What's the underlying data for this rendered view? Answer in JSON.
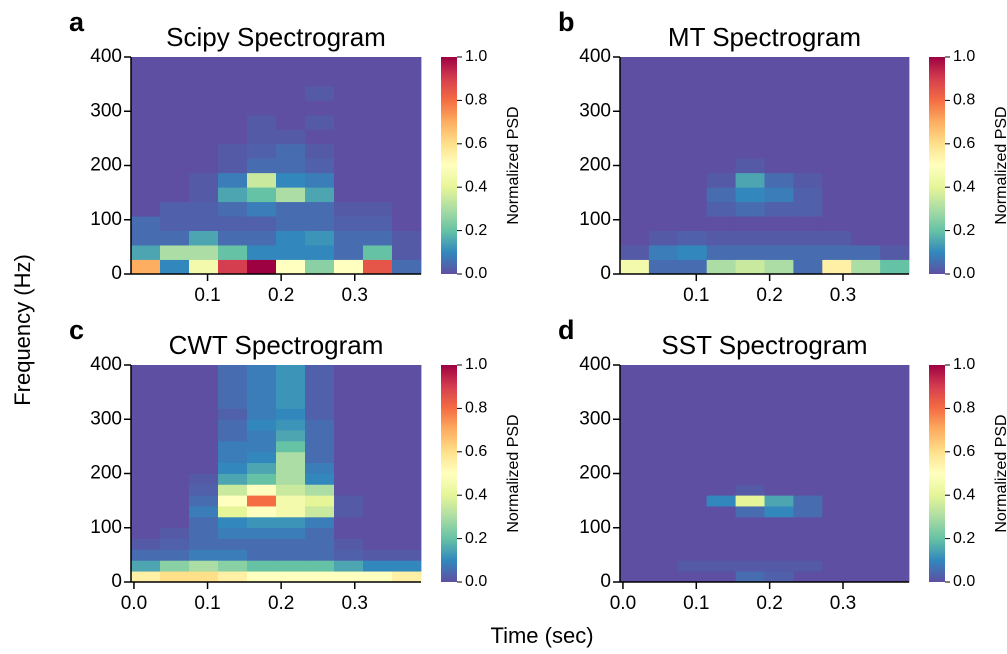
{
  "figure": {
    "xlabel": "Time (sec)",
    "ylabel": "Frequency (Hz)"
  },
  "colormap": [
    "#5e4fa2",
    "#3288bd",
    "#66c2a5",
    "#abdda4",
    "#e6f598",
    "#ffffbf",
    "#fee08b",
    "#fdae61",
    "#f46d43",
    "#d53e4f",
    "#9e0142"
  ],
  "chart_data": [
    {
      "type": "heatmap",
      "panel": "a",
      "title": "Scipy Spectrogram",
      "xbins": [
        -0.004,
        0.0354,
        0.0748,
        0.1142,
        0.1536,
        0.193,
        0.2324,
        0.2718,
        0.3112,
        0.3506,
        0.39
      ],
      "ybins": [
        0,
        26.67,
        53.33,
        80,
        106.67,
        133.33,
        160,
        186.67,
        213.33,
        240,
        266.67,
        293.33,
        320,
        346.67,
        373.33,
        400
      ],
      "values": [
        [
          0.7,
          0.1,
          0.45,
          0.9,
          1.0,
          0.5,
          0.25,
          0.5,
          0.85,
          0.05
        ],
        [
          0.15,
          0.3,
          0.3,
          0.2,
          0.1,
          0.1,
          0.1,
          0.05,
          0.2,
          0.02
        ],
        [
          0.05,
          0.05,
          0.15,
          0.05,
          0.05,
          0.1,
          0.12,
          0.05,
          0.05,
          0.02
        ],
        [
          0.05,
          0.03,
          0.03,
          0.03,
          0.03,
          0.05,
          0.05,
          0.03,
          0.03,
          0
        ],
        [
          0,
          0.03,
          0.03,
          0.05,
          0.08,
          0.05,
          0.05,
          0.02,
          0.02,
          0
        ],
        [
          0,
          0,
          0.02,
          0.15,
          0.2,
          0.3,
          0.15,
          0,
          0,
          0
        ],
        [
          0,
          0,
          0.02,
          0.08,
          0.35,
          0.1,
          0.08,
          0,
          0,
          0
        ],
        [
          0,
          0,
          0,
          0.02,
          0.05,
          0.05,
          0.03,
          0,
          0,
          0
        ],
        [
          0,
          0,
          0,
          0.02,
          0.03,
          0.05,
          0.02,
          0,
          0,
          0
        ],
        [
          0,
          0,
          0,
          0,
          0.02,
          0.02,
          0,
          0,
          0,
          0
        ],
        [
          0,
          0,
          0,
          0,
          0.02,
          0,
          0.02,
          0,
          0,
          0
        ],
        [
          0,
          0,
          0,
          0,
          0,
          0,
          0,
          0,
          0,
          0
        ],
        [
          0,
          0,
          0,
          0,
          0,
          0,
          0.02,
          0,
          0,
          0
        ],
        [
          0,
          0,
          0,
          0,
          0,
          0,
          0,
          0,
          0,
          0
        ],
        [
          0,
          0,
          0,
          0,
          0,
          0,
          0,
          0,
          0,
          0
        ]
      ],
      "xlim": [
        -0.004,
        0.39
      ],
      "ylim": [
        0,
        400
      ],
      "xticks": [
        0.1,
        0.2,
        0.3
      ],
      "yticks": [
        0,
        100,
        200,
        300,
        400
      ],
      "clim": [
        0,
        1
      ],
      "cticks": [
        {
          "value": 0,
          "label": "0.0"
        },
        0.2,
        0.4,
        0.6,
        0.8,
        {
          "value": 1,
          "label": "1.0"
        }
      ],
      "colorbar_label": "Normalized PSD"
    },
    {
      "type": "heatmap",
      "panel": "b",
      "title": "MT Spectrogram",
      "xbins": [
        -0.004,
        0.0354,
        0.0748,
        0.1142,
        0.1536,
        0.193,
        0.2324,
        0.2718,
        0.3112,
        0.3506,
        0.39
      ],
      "ybins": [
        0,
        26.67,
        53.33,
        80,
        106.67,
        133.33,
        160,
        186.67,
        213.33,
        240,
        266.67,
        293.33,
        320,
        346.67,
        373.33,
        400
      ],
      "values": [
        [
          0.45,
          0.05,
          0.05,
          0.3,
          0.35,
          0.3,
          0.05,
          0.55,
          0.3,
          0.2
        ],
        [
          0.02,
          0.08,
          0.1,
          0.05,
          0.05,
          0.05,
          0.05,
          0.05,
          0.05,
          0.02
        ],
        [
          0,
          0.02,
          0.03,
          0.02,
          0.02,
          0.02,
          0.02,
          0.02,
          0,
          0
        ],
        [
          0,
          0,
          0,
          0,
          0,
          0,
          0,
          0,
          0,
          0
        ],
        [
          0,
          0,
          0,
          0.03,
          0.05,
          0.03,
          0.03,
          0,
          0,
          0
        ],
        [
          0,
          0,
          0,
          0.05,
          0.1,
          0.08,
          0.03,
          0,
          0,
          0
        ],
        [
          0,
          0,
          0,
          0.02,
          0.15,
          0.05,
          0.02,
          0,
          0,
          0
        ],
        [
          0,
          0,
          0,
          0,
          0.02,
          0,
          0,
          0,
          0,
          0
        ],
        [
          0,
          0,
          0,
          0,
          0,
          0,
          0,
          0,
          0,
          0
        ],
        [
          0,
          0,
          0,
          0,
          0,
          0,
          0,
          0,
          0,
          0
        ],
        [
          0,
          0,
          0,
          0,
          0,
          0,
          0,
          0,
          0,
          0
        ],
        [
          0,
          0,
          0,
          0,
          0,
          0,
          0,
          0,
          0,
          0
        ],
        [
          0,
          0,
          0,
          0,
          0,
          0,
          0,
          0,
          0,
          0
        ],
        [
          0,
          0,
          0,
          0,
          0,
          0,
          0,
          0,
          0,
          0
        ],
        [
          0,
          0,
          0,
          0,
          0,
          0,
          0,
          0,
          0,
          0
        ]
      ],
      "xlim": [
        -0.004,
        0.39
      ],
      "ylim": [
        0,
        400
      ],
      "xticks": [
        0.1,
        0.2,
        0.3
      ],
      "yticks": [
        0,
        100,
        200,
        300,
        400
      ],
      "clim": [
        0,
        1
      ],
      "cticks": [
        {
          "value": 0,
          "label": "0.0"
        },
        0.2,
        0.4,
        0.6,
        0.8,
        {
          "value": 1,
          "label": "1.0"
        }
      ],
      "colorbar_label": "Normalized PSD"
    },
    {
      "type": "heatmap",
      "panel": "c",
      "title": "CWT Spectrogram",
      "xbins": [
        -0.004,
        0.0354,
        0.0748,
        0.1142,
        0.1536,
        0.193,
        0.2324,
        0.2718,
        0.3112,
        0.3506,
        0.39
      ],
      "ybins": [
        0,
        20,
        40,
        60,
        80,
        100,
        120,
        140,
        160,
        180,
        200,
        220,
        240,
        260,
        280,
        300,
        320,
        340,
        360,
        380,
        400
      ],
      "values": [
        [
          0.55,
          0.6,
          0.6,
          0.55,
          0.5,
          0.5,
          0.5,
          0.5,
          0.5,
          0.55
        ],
        [
          0.15,
          0.25,
          0.3,
          0.25,
          0.2,
          0.2,
          0.2,
          0.15,
          0.1,
          0.1
        ],
        [
          0.05,
          0.05,
          0.08,
          0.08,
          0.05,
          0.05,
          0.05,
          0.03,
          0.02,
          0.02
        ],
        [
          0.02,
          0.03,
          0.05,
          0.05,
          0.05,
          0.05,
          0.05,
          0.02,
          0,
          0
        ],
        [
          0,
          0.02,
          0.05,
          0.08,
          0.08,
          0.08,
          0.05,
          0,
          0,
          0
        ],
        [
          0,
          0,
          0.05,
          0.1,
          0.12,
          0.12,
          0.08,
          0,
          0,
          0
        ],
        [
          0,
          0,
          0.08,
          0.4,
          0.5,
          0.45,
          0.35,
          0.02,
          0,
          0
        ],
        [
          0,
          0,
          0.05,
          0.5,
          0.8,
          0.45,
          0.4,
          0.02,
          0,
          0
        ],
        [
          0,
          0,
          0.03,
          0.35,
          0.5,
          0.35,
          0.3,
          0,
          0,
          0
        ],
        [
          0,
          0,
          0.02,
          0.15,
          0.2,
          0.3,
          0.1,
          0,
          0,
          0
        ],
        [
          0,
          0,
          0,
          0.1,
          0.15,
          0.3,
          0.08,
          0,
          0,
          0
        ],
        [
          0,
          0,
          0,
          0.08,
          0.1,
          0.3,
          0.05,
          0,
          0,
          0
        ],
        [
          0,
          0,
          0,
          0.08,
          0.08,
          0.2,
          0.05,
          0,
          0,
          0
        ],
        [
          0,
          0,
          0,
          0.05,
          0.08,
          0.15,
          0.05,
          0,
          0,
          0
        ],
        [
          0,
          0,
          0,
          0.05,
          0.1,
          0.12,
          0.05,
          0,
          0,
          0
        ],
        [
          0,
          0,
          0,
          0.03,
          0.08,
          0.1,
          0.03,
          0,
          0,
          0
        ],
        [
          0,
          0,
          0,
          0.05,
          0.08,
          0.12,
          0.03,
          0,
          0,
          0
        ],
        [
          0,
          0,
          0,
          0.05,
          0.08,
          0.12,
          0.03,
          0,
          0,
          0
        ],
        [
          0,
          0,
          0,
          0.05,
          0.08,
          0.12,
          0.03,
          0,
          0,
          0
        ],
        [
          0,
          0,
          0,
          0.05,
          0.08,
          0.12,
          0.03,
          0,
          0,
          0
        ]
      ],
      "xlim": [
        -0.004,
        0.39
      ],
      "ylim": [
        0,
        400
      ],
      "xticks": [
        {
          "value": 0,
          "label": "0.0"
        },
        0.1,
        0.2,
        0.3
      ],
      "yticks": [
        0,
        100,
        200,
        300,
        400
      ],
      "clim": [
        0,
        1
      ],
      "cticks": [
        {
          "value": 0,
          "label": "0.0"
        },
        0.2,
        0.4,
        0.6,
        0.8,
        {
          "value": 1,
          "label": "1.0"
        }
      ],
      "colorbar_label": "Normalized PSD"
    },
    {
      "type": "heatmap",
      "panel": "d",
      "title": "SST Spectrogram",
      "xbins": [
        -0.004,
        0.0354,
        0.0748,
        0.1142,
        0.1536,
        0.193,
        0.2324,
        0.2718,
        0.3112,
        0.3506,
        0.39
      ],
      "ybins": [
        0,
        20,
        40,
        60,
        80,
        100,
        120,
        140,
        160,
        180,
        200,
        220,
        240,
        260,
        280,
        300,
        320,
        340,
        360,
        380,
        400
      ],
      "values": [
        [
          0,
          0,
          0,
          0,
          0.05,
          0.03,
          0,
          0,
          0,
          0
        ],
        [
          0,
          0,
          0.02,
          0.02,
          0.02,
          0.02,
          0.02,
          0,
          0,
          0
        ],
        [
          0,
          0,
          0,
          0,
          0,
          0,
          0,
          0,
          0,
          0
        ],
        [
          0,
          0,
          0,
          0,
          0,
          0,
          0,
          0,
          0,
          0
        ],
        [
          0,
          0,
          0,
          0,
          0,
          0,
          0,
          0,
          0,
          0
        ],
        [
          0,
          0,
          0,
          0,
          0,
          0,
          0,
          0,
          0,
          0
        ],
        [
          0,
          0,
          0,
          0,
          0.05,
          0.1,
          0.05,
          0,
          0,
          0
        ],
        [
          0,
          0,
          0,
          0.1,
          0.4,
          0.15,
          0.05,
          0,
          0,
          0
        ],
        [
          0,
          0,
          0,
          0,
          0.02,
          0,
          0,
          0,
          0,
          0
        ],
        [
          0,
          0,
          0,
          0,
          0,
          0,
          0,
          0,
          0,
          0
        ],
        [
          0,
          0,
          0,
          0,
          0,
          0,
          0,
          0,
          0,
          0
        ],
        [
          0,
          0,
          0,
          0,
          0,
          0,
          0,
          0,
          0,
          0
        ],
        [
          0,
          0,
          0,
          0,
          0,
          0,
          0,
          0,
          0,
          0
        ],
        [
          0,
          0,
          0,
          0,
          0,
          0,
          0,
          0,
          0,
          0
        ],
        [
          0,
          0,
          0,
          0,
          0,
          0,
          0,
          0,
          0,
          0
        ],
        [
          0,
          0,
          0,
          0,
          0,
          0,
          0,
          0,
          0,
          0
        ],
        [
          0,
          0,
          0,
          0,
          0,
          0,
          0,
          0,
          0,
          0
        ],
        [
          0,
          0,
          0,
          0,
          0,
          0,
          0,
          0,
          0,
          0
        ],
        [
          0,
          0,
          0,
          0,
          0,
          0,
          0,
          0,
          0,
          0
        ],
        [
          0,
          0,
          0,
          0,
          0,
          0,
          0,
          0,
          0,
          0
        ]
      ],
      "xlim": [
        -0.004,
        0.39
      ],
      "ylim": [
        0,
        400
      ],
      "xticks": [
        {
          "value": 0,
          "label": "0.0"
        },
        0.1,
        0.2,
        0.3
      ],
      "yticks": [
        0,
        100,
        200,
        300,
        400
      ],
      "clim": [
        0,
        1
      ],
      "cticks": [
        {
          "value": 0,
          "label": "0.0"
        },
        0.2,
        0.4,
        0.6,
        0.8,
        {
          "value": 1,
          "label": "1.0"
        }
      ],
      "colorbar_label": "Normalized PSD"
    }
  ]
}
